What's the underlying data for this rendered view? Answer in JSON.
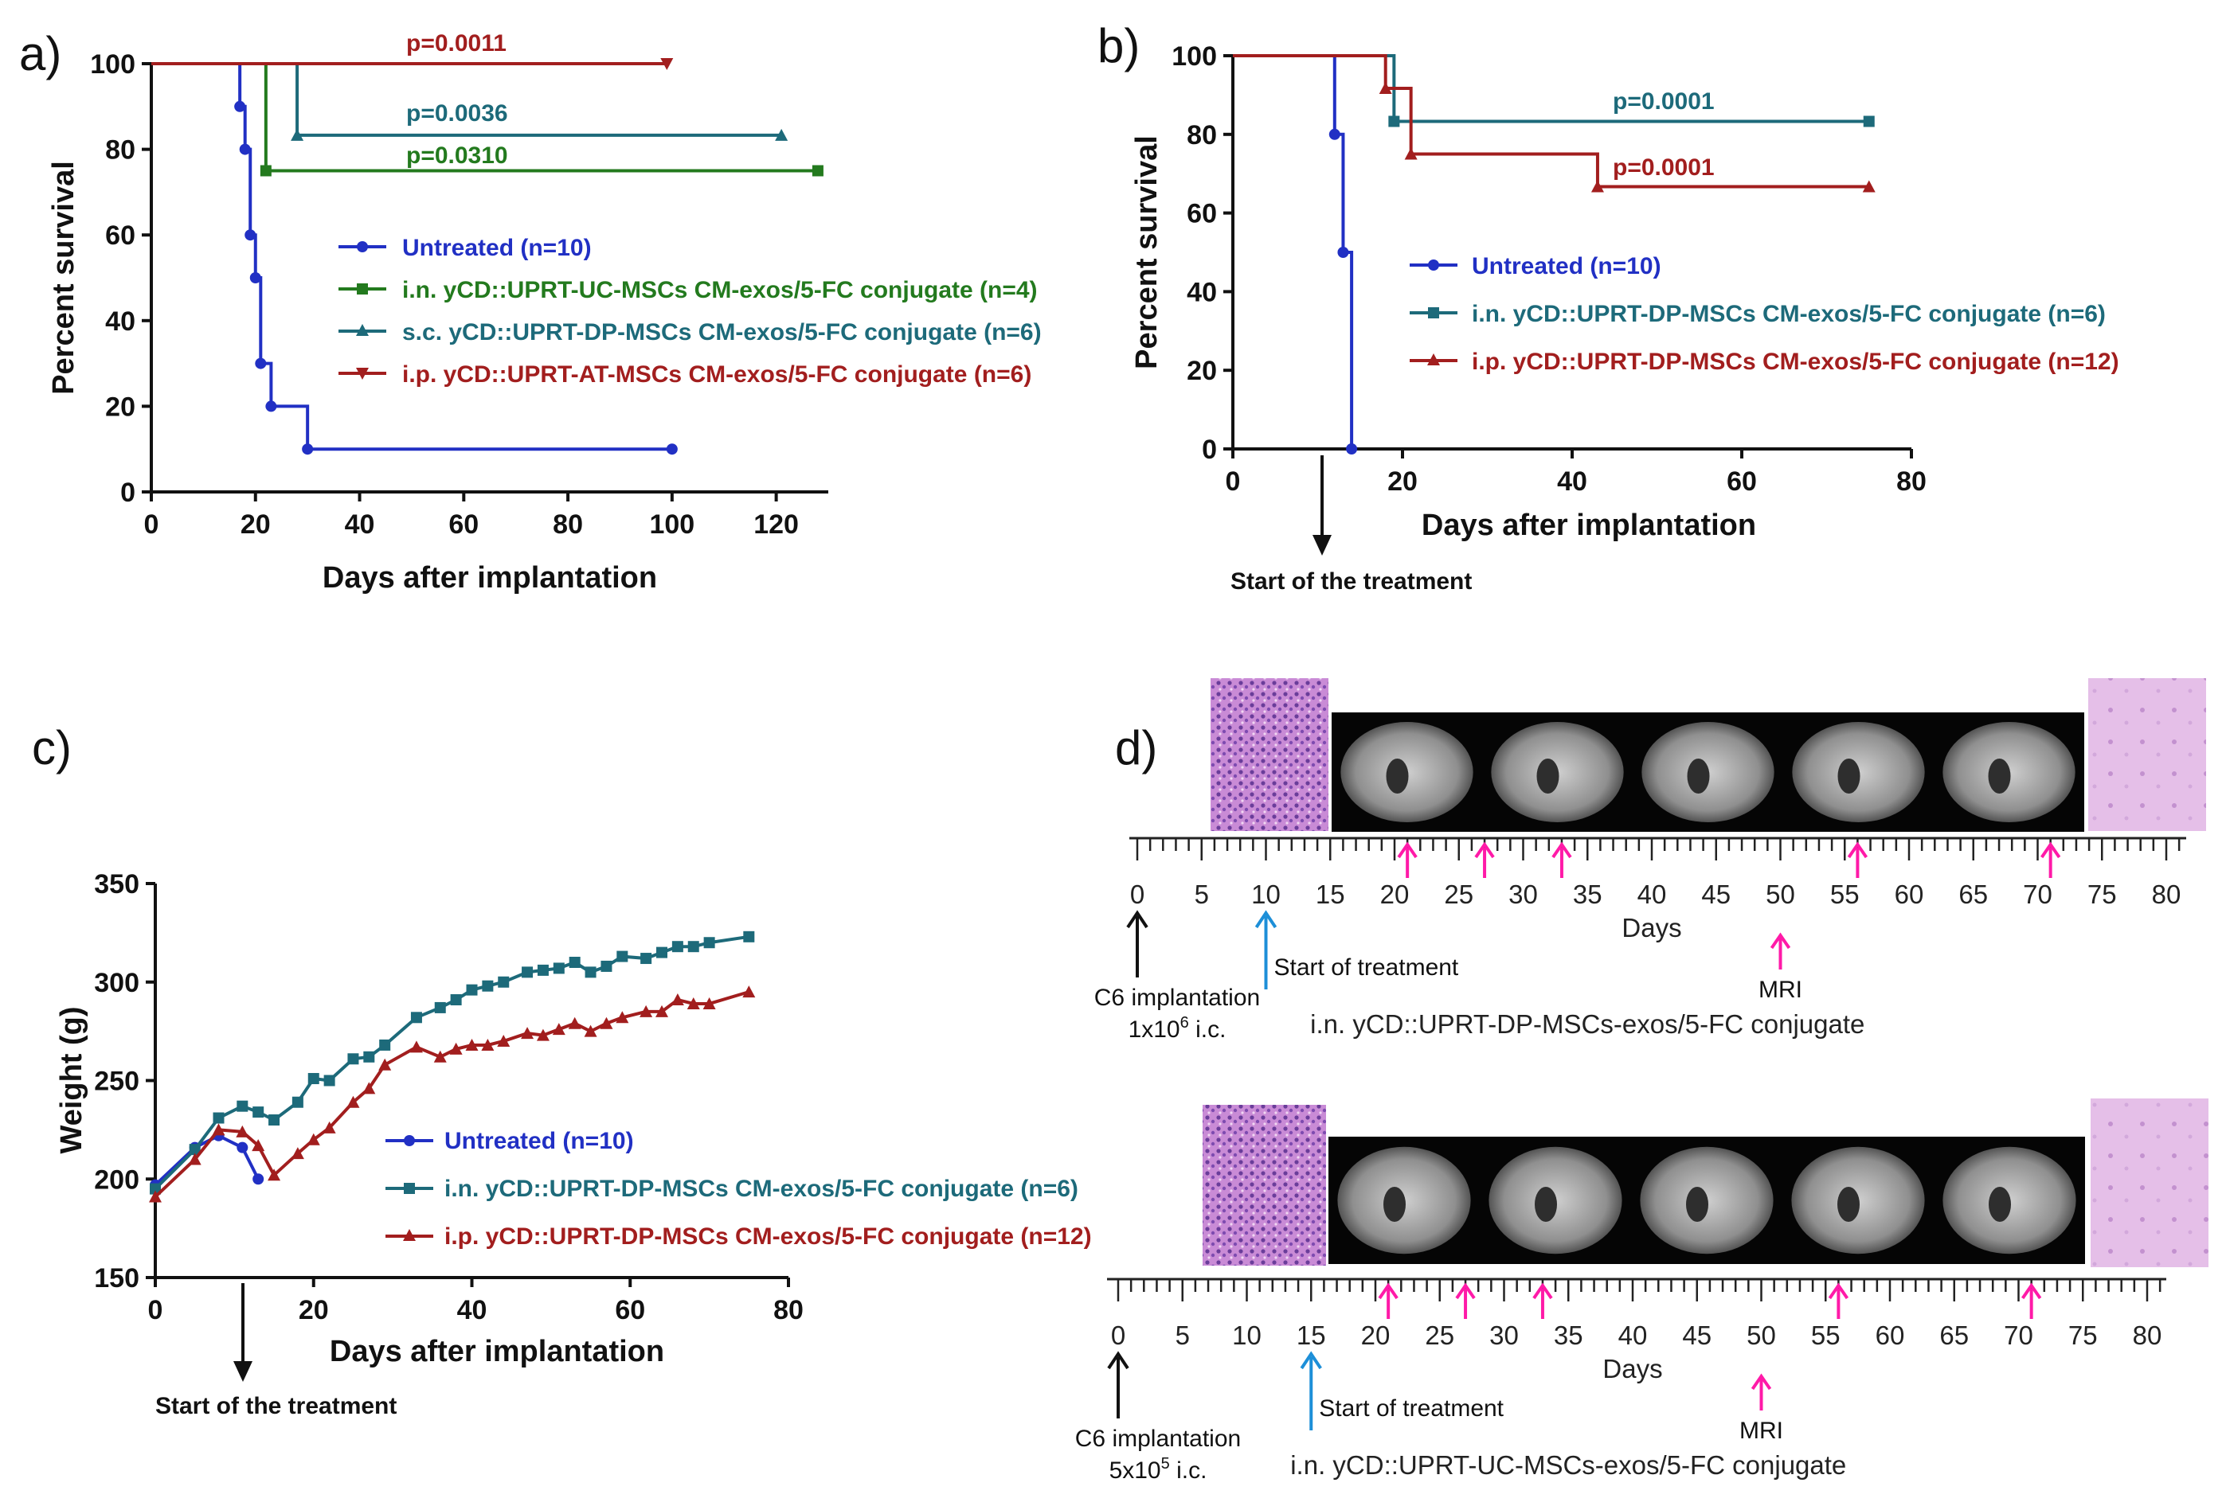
{
  "colors": {
    "blue": "#2130c4",
    "green": "#237a1e",
    "teal": "#1d6a7a",
    "red": "#a21e1e",
    "magenta": "#ff1aa8",
    "lightblue": "#1d8fd8"
  },
  "chart_data": [
    {
      "id": "a",
      "panel_label": "a)",
      "type": "line",
      "xlabel": "Days after implantation",
      "ylabel": "Percent survival",
      "xlim": [
        0,
        130
      ],
      "ylim": [
        0,
        100
      ],
      "xticks": [
        "0",
        "20",
        "40",
        "60",
        "80",
        "100",
        "120"
      ],
      "yticks": [
        "0",
        "20",
        "40",
        "60",
        "80",
        "100"
      ],
      "series": [
        {
          "name": "Untreated (n=10)",
          "color": "#2130c4",
          "marker": "circle",
          "x": [
            0,
            17,
            18,
            19,
            20,
            21,
            23,
            30,
            100
          ],
          "y": [
            100,
            90,
            80,
            60,
            50,
            30,
            20,
            10,
            10
          ]
        },
        {
          "name": "i.n. yCD::UPRT-UC-MSCs CM-exos/5-FC conjugate (n=4)",
          "color": "#237a1e",
          "marker": "square",
          "x": [
            0,
            22,
            128
          ],
          "y": [
            100,
            75,
            75
          ]
        },
        {
          "name": "s.c. yCD::UPRT-DP-MSCs CM-exos/5-FC conjugate (n=6)",
          "color": "#1d6a7a",
          "marker": "triangle-up",
          "x": [
            0,
            28,
            121
          ],
          "y": [
            100,
            83.3,
            83.3
          ]
        },
        {
          "name": "i.p. yCD::UPRT-AT-MSCs CM-exos/5-FC conjugate (n=6)",
          "color": "#a21e1e",
          "marker": "triangle-down",
          "x": [
            0,
            99
          ],
          "y": [
            100,
            100
          ]
        }
      ],
      "annotations": [
        "p=0.0011",
        "p=0.0036",
        "p=0.0310"
      ]
    },
    {
      "id": "b",
      "panel_label": "b)",
      "type": "line",
      "xlabel": "Days after implantation",
      "ylabel": "Percent survival",
      "xlim": [
        0,
        80
      ],
      "ylim": [
        0,
        100
      ],
      "xticks": [
        "0",
        "20",
        "40",
        "60",
        "80"
      ],
      "yticks": [
        "0",
        "20",
        "40",
        "60",
        "80",
        "100"
      ],
      "arrow_label": "Start of the treatment",
      "series": [
        {
          "name": "Untreated (n=10)",
          "color": "#2130c4",
          "marker": "circle",
          "x": [
            0,
            12,
            13,
            14
          ],
          "y": [
            100,
            80,
            50,
            0
          ]
        },
        {
          "name": "i.n. yCD::UPRT-DP-MSCs CM-exos/5-FC conjugate (n=6)",
          "color": "#1d6a7a",
          "marker": "square",
          "x": [
            0,
            19,
            75
          ],
          "y": [
            100,
            83.3,
            83.3
          ]
        },
        {
          "name": "i.p. yCD::UPRT-DP-MSCs CM-exos/5-FC conjugate (n=12)",
          "color": "#a21e1e",
          "marker": "triangle-up",
          "x": [
            0,
            18,
            21,
            43,
            75
          ],
          "y": [
            100,
            91.7,
            75,
            66.7,
            66.7
          ]
        }
      ],
      "annotations": [
        "p=0.0001",
        "p=0.0001"
      ]
    },
    {
      "id": "c",
      "panel_label": "c)",
      "type": "line",
      "xlabel": "Days after implantation",
      "ylabel": "Weight (g)",
      "xlim": [
        0,
        80
      ],
      "ylim": [
        150,
        350
      ],
      "xticks": [
        "0",
        "20",
        "40",
        "60",
        "80"
      ],
      "yticks": [
        "150",
        "200",
        "250",
        "300",
        "350"
      ],
      "arrow_label": "Start of the treatment",
      "series": [
        {
          "name": "Untreated (n=10)",
          "color": "#2130c4",
          "marker": "circle",
          "x": [
            0,
            5,
            8,
            11,
            13
          ],
          "y": [
            197,
            216,
            222,
            216,
            200
          ]
        },
        {
          "name": "i.n. yCD::UPRT-DP-MSCs CM-exos/5-FC conjugate (n=6)",
          "color": "#1d6a7a",
          "marker": "square",
          "x": [
            0,
            5,
            8,
            11,
            13,
            15,
            18,
            20,
            22,
            25,
            27,
            29,
            33,
            36,
            38,
            40,
            42,
            44,
            47,
            49,
            51,
            53,
            55,
            57,
            59,
            62,
            64,
            66,
            68,
            70,
            75
          ],
          "y": [
            195,
            215,
            231,
            237,
            234,
            230,
            239,
            251,
            250,
            261,
            262,
            268,
            282,
            287,
            291,
            296,
            298,
            300,
            305,
            306,
            307,
            310,
            305,
            308,
            313,
            312,
            315,
            318,
            318,
            320,
            323
          ]
        },
        {
          "name": "i.p. yCD::UPRT-DP-MSCs CM-exos/5-FC conjugate (n=12)",
          "color": "#a21e1e",
          "marker": "triangle-up",
          "x": [
            0,
            5,
            8,
            11,
            13,
            15,
            18,
            20,
            22,
            25,
            27,
            29,
            33,
            36,
            38,
            40,
            42,
            44,
            47,
            49,
            51,
            53,
            55,
            57,
            59,
            62,
            64,
            66,
            68,
            70,
            75
          ],
          "y": [
            191,
            210,
            225,
            224,
            217,
            202,
            213,
            220,
            226,
            239,
            246,
            258,
            267,
            262,
            266,
            268,
            268,
            270,
            274,
            273,
            276,
            279,
            275,
            279,
            282,
            285,
            285,
            291,
            289,
            289,
            295
          ]
        }
      ]
    }
  ],
  "panel_d": {
    "label": "d)",
    "timeline_ticks": [
      "0",
      "5",
      "10",
      "15",
      "20",
      "25",
      "30",
      "35",
      "40",
      "45",
      "50",
      "55",
      "60",
      "65",
      "70",
      "75",
      "80"
    ],
    "xlabel": "Days",
    "rows": [
      {
        "mri_days": [
          21,
          27,
          33,
          56,
          71
        ],
        "treatment_day": 10,
        "implant_line1": "C6 implantation",
        "implant_line2": "1x10",
        "implant_exp": "6",
        "implant_suffix": " i.c.",
        "treatment_label": "Start of treatment",
        "mri_label": "MRI",
        "caption": "i.n. yCD::UPRT-DP-MSCs-exos/5-FC conjugate"
      },
      {
        "mri_days": [
          21,
          27,
          33,
          56,
          71
        ],
        "treatment_day": 15,
        "implant_line1": "C6 implantation",
        "implant_line2": "5x10",
        "implant_exp": "5",
        "implant_suffix": " i.c.",
        "treatment_label": "Start of treatment",
        "mri_label": "MRI",
        "caption": "i.n. yCD::UPRT-UC-MSCs-exos/5-FC conjugate"
      }
    ]
  }
}
